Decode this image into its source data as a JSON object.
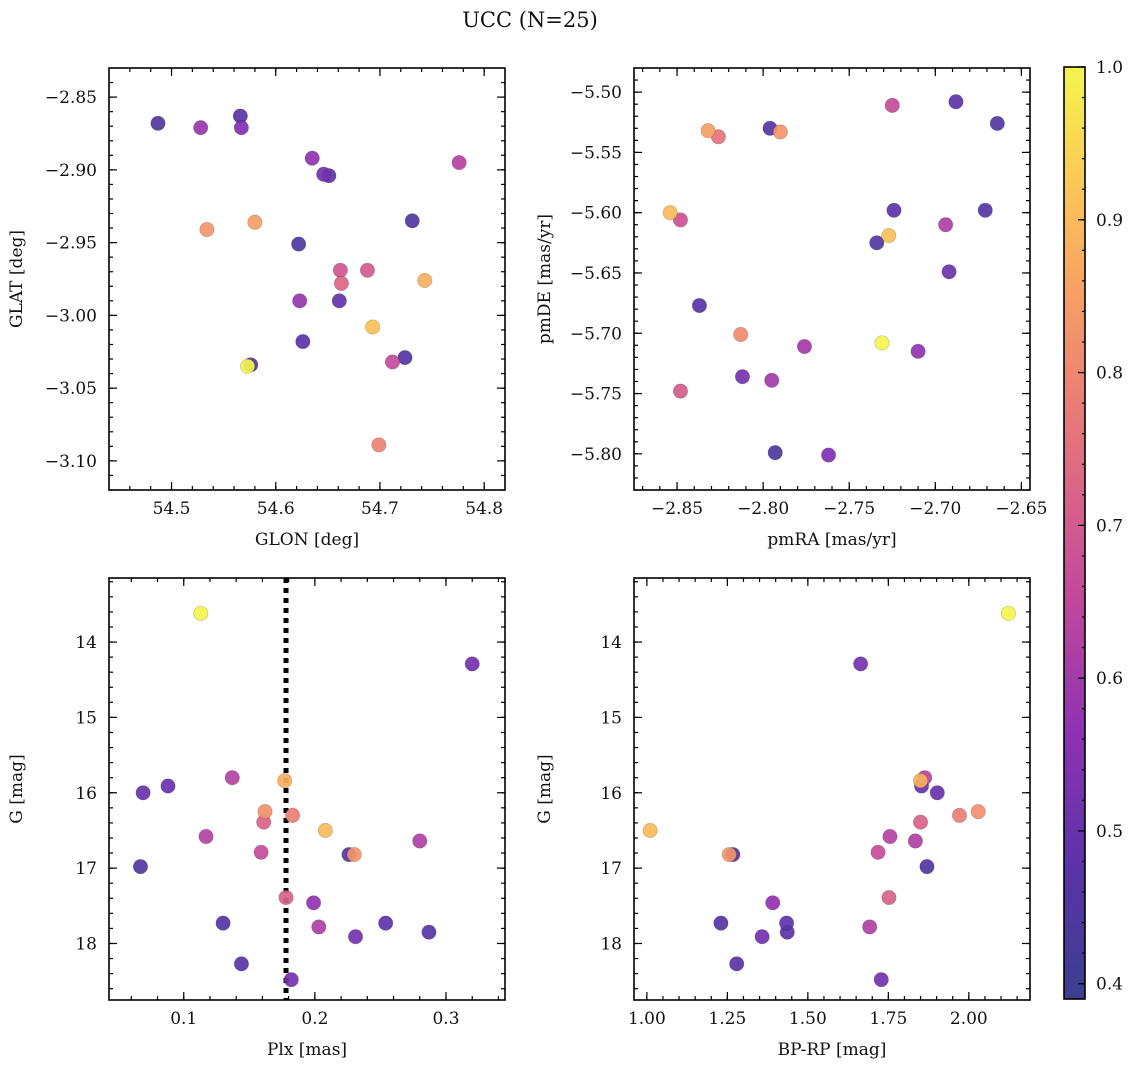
{
  "figure_title": "UCC (N=25)",
  "colorbar": {
    "min": 0.39,
    "max": 1.0,
    "ticks": [
      0.4,
      0.5,
      0.6,
      0.7,
      0.8,
      0.9,
      1.0
    ],
    "tick_labels": [
      "0.4",
      "0.5",
      "0.6",
      "0.7",
      "0.8",
      "0.9",
      "1.0"
    ],
    "colormap": "plasma"
  },
  "chart_data": [
    {
      "type": "scatter",
      "xlabel": "GLON [deg]",
      "ylabel": "GLAT [deg]",
      "xlim": [
        54.44,
        54.82
      ],
      "ylim": [
        -3.12,
        -2.83
      ],
      "y_inverted": false,
      "xticks": [
        54.5,
        54.6,
        54.7,
        54.8
      ],
      "xtick_labels": [
        "54.5",
        "54.6",
        "54.7",
        "54.8"
      ],
      "yticks": [
        -2.85,
        -2.9,
        -2.95,
        -3.0,
        -3.05,
        -3.1
      ],
      "ytick_labels": [
        "−2.85",
        "−2.90",
        "−2.95",
        "−3.00",
        "−3.05",
        "−3.10"
      ],
      "points": [
        {
          "x": 54.487,
          "y": -2.868,
          "c": 0.45
        },
        {
          "x": 54.528,
          "y": -2.871,
          "c": 0.58
        },
        {
          "x": 54.566,
          "y": -2.863,
          "c": 0.47
        },
        {
          "x": 54.567,
          "y": -2.871,
          "c": 0.54
        },
        {
          "x": 54.635,
          "y": -2.892,
          "c": 0.57
        },
        {
          "x": 54.646,
          "y": -2.903,
          "c": 0.52
        },
        {
          "x": 54.651,
          "y": -2.904,
          "c": 0.48
        },
        {
          "x": 54.776,
          "y": -2.895,
          "c": 0.63
        },
        {
          "x": 54.731,
          "y": -2.935,
          "c": 0.45
        },
        {
          "x": 54.534,
          "y": -2.941,
          "c": 0.83
        },
        {
          "x": 54.58,
          "y": -2.936,
          "c": 0.85
        },
        {
          "x": 54.622,
          "y": -2.951,
          "c": 0.44
        },
        {
          "x": 54.662,
          "y": -2.969,
          "c": 0.69
        },
        {
          "x": 54.688,
          "y": -2.969,
          "c": 0.7
        },
        {
          "x": 54.663,
          "y": -2.978,
          "c": 0.73
        },
        {
          "x": 54.743,
          "y": -2.976,
          "c": 0.88
        },
        {
          "x": 54.623,
          "y": -2.99,
          "c": 0.58
        },
        {
          "x": 54.661,
          "y": -2.99,
          "c": 0.49
        },
        {
          "x": 54.693,
          "y": -3.008,
          "c": 0.91
        },
        {
          "x": 54.626,
          "y": -3.018,
          "c": 0.48
        },
        {
          "x": 54.724,
          "y": -3.029,
          "c": 0.46
        },
        {
          "x": 54.712,
          "y": -3.032,
          "c": 0.66
        },
        {
          "x": 54.576,
          "y": -3.034,
          "c": 0.46
        },
        {
          "x": 54.573,
          "y": -3.035,
          "c": 1.0
        },
        {
          "x": 54.699,
          "y": -3.089,
          "c": 0.79
        }
      ]
    },
    {
      "type": "scatter",
      "xlabel": "pmRA [mas/yr]",
      "ylabel": "pmDE [mas/yr]",
      "xlim": [
        -2.875,
        -2.645
      ],
      "ylim": [
        -5.83,
        -5.48
      ],
      "y_inverted": false,
      "xticks": [
        -2.85,
        -2.8,
        -2.75,
        -2.7,
        -2.65
      ],
      "xtick_labels": [
        "−2.85",
        "−2.80",
        "−2.75",
        "−2.70",
        "−2.65"
      ],
      "yticks": [
        -5.5,
        -5.55,
        -5.6,
        -5.65,
        -5.7,
        -5.75,
        -5.8
      ],
      "ytick_labels": [
        "−5.50",
        "−5.55",
        "−5.60",
        "−5.65",
        "−5.70",
        "−5.75",
        "−5.80"
      ],
      "points": [
        {
          "x": -2.725,
          "y": -5.511,
          "c": 0.66
        },
        {
          "x": -2.688,
          "y": -5.508,
          "c": 0.48
        },
        {
          "x": -2.664,
          "y": -5.526,
          "c": 0.46
        },
        {
          "x": -2.832,
          "y": -5.532,
          "c": 0.85
        },
        {
          "x": -2.826,
          "y": -5.537,
          "c": 0.76
        },
        {
          "x": -2.796,
          "y": -5.53,
          "c": 0.46
        },
        {
          "x": -2.79,
          "y": -5.533,
          "c": 0.83
        },
        {
          "x": -2.854,
          "y": -5.6,
          "c": 0.9
        },
        {
          "x": -2.848,
          "y": -5.606,
          "c": 0.68
        },
        {
          "x": -2.724,
          "y": -5.598,
          "c": 0.48
        },
        {
          "x": -2.671,
          "y": -5.598,
          "c": 0.46
        },
        {
          "x": -2.734,
          "y": -5.625,
          "c": 0.45
        },
        {
          "x": -2.727,
          "y": -5.619,
          "c": 0.91
        },
        {
          "x": -2.694,
          "y": -5.61,
          "c": 0.62
        },
        {
          "x": -2.692,
          "y": -5.649,
          "c": 0.51
        },
        {
          "x": -2.837,
          "y": -5.677,
          "c": 0.47
        },
        {
          "x": -2.813,
          "y": -5.701,
          "c": 0.81
        },
        {
          "x": -2.776,
          "y": -5.711,
          "c": 0.6
        },
        {
          "x": -2.731,
          "y": -5.708,
          "c": 1.0
        },
        {
          "x": -2.71,
          "y": -5.715,
          "c": 0.57
        },
        {
          "x": -2.812,
          "y": -5.736,
          "c": 0.52
        },
        {
          "x": -2.795,
          "y": -5.739,
          "c": 0.6
        },
        {
          "x": -2.848,
          "y": -5.748,
          "c": 0.7
        },
        {
          "x": -2.793,
          "y": -5.799,
          "c": 0.44
        },
        {
          "x": -2.762,
          "y": -5.801,
          "c": 0.54
        }
      ]
    },
    {
      "type": "scatter",
      "xlabel": "Plx [mas]",
      "ylabel": "G [mag]",
      "xlim": [
        0.043,
        0.345
      ],
      "ylim": [
        13.15,
        18.75
      ],
      "y_inverted": true,
      "xticks": [
        0.1,
        0.2,
        0.3
      ],
      "xtick_labels": [
        "0.1",
        "0.2",
        "0.3"
      ],
      "yticks": [
        14,
        15,
        16,
        17,
        18
      ],
      "ytick_labels": [
        "14",
        "15",
        "16",
        "17",
        "18"
      ],
      "vline": {
        "x": 0.178,
        "style": "dotted"
      },
      "points": [
        {
          "x": 0.113,
          "y": 13.62,
          "c": 1.0
        },
        {
          "x": 0.32,
          "y": 14.29,
          "c": 0.52
        },
        {
          "x": 0.137,
          "y": 15.8,
          "c": 0.63
        },
        {
          "x": 0.088,
          "y": 15.91,
          "c": 0.5
        },
        {
          "x": 0.069,
          "y": 16.0,
          "c": 0.5
        },
        {
          "x": 0.177,
          "y": 15.84,
          "c": 0.88
        },
        {
          "x": 0.162,
          "y": 16.25,
          "c": 0.82
        },
        {
          "x": 0.183,
          "y": 16.3,
          "c": 0.78
        },
        {
          "x": 0.161,
          "y": 16.39,
          "c": 0.72
        },
        {
          "x": 0.208,
          "y": 16.5,
          "c": 0.9
        },
        {
          "x": 0.117,
          "y": 16.58,
          "c": 0.63
        },
        {
          "x": 0.28,
          "y": 16.64,
          "c": 0.62
        },
        {
          "x": 0.159,
          "y": 16.79,
          "c": 0.66
        },
        {
          "x": 0.226,
          "y": 16.82,
          "c": 0.46
        },
        {
          "x": 0.23,
          "y": 16.82,
          "c": 0.83
        },
        {
          "x": 0.067,
          "y": 16.98,
          "c": 0.45
        },
        {
          "x": 0.178,
          "y": 17.39,
          "c": 0.72
        },
        {
          "x": 0.199,
          "y": 17.46,
          "c": 0.57
        },
        {
          "x": 0.13,
          "y": 17.73,
          "c": 0.46
        },
        {
          "x": 0.254,
          "y": 17.73,
          "c": 0.48
        },
        {
          "x": 0.203,
          "y": 17.78,
          "c": 0.62
        },
        {
          "x": 0.287,
          "y": 17.85,
          "c": 0.47
        },
        {
          "x": 0.231,
          "y": 17.91,
          "c": 0.52
        },
        {
          "x": 0.144,
          "y": 18.27,
          "c": 0.47
        },
        {
          "x": 0.182,
          "y": 18.48,
          "c": 0.52
        }
      ]
    },
    {
      "type": "scatter",
      "xlabel": "BP-RP [mag]",
      "ylabel": "G [mag]",
      "xlim": [
        0.96,
        2.19
      ],
      "ylim": [
        13.15,
        18.75
      ],
      "y_inverted": true,
      "xticks": [
        1.0,
        1.25,
        1.5,
        1.75,
        2.0
      ],
      "xtick_labels": [
        "1.00",
        "1.25",
        "1.50",
        "1.75",
        "2.00"
      ],
      "yticks": [
        14,
        15,
        16,
        17,
        18
      ],
      "ytick_labels": [
        "14",
        "15",
        "16",
        "17",
        "18"
      ],
      "points": [
        {
          "x": 2.123,
          "y": 13.62,
          "c": 1.0
        },
        {
          "x": 1.664,
          "y": 14.29,
          "c": 0.52
        },
        {
          "x": 1.863,
          "y": 15.8,
          "c": 0.63
        },
        {
          "x": 1.85,
          "y": 15.84,
          "c": 0.88
        },
        {
          "x": 1.853,
          "y": 15.91,
          "c": 0.5
        },
        {
          "x": 1.902,
          "y": 16.0,
          "c": 0.5
        },
        {
          "x": 2.029,
          "y": 16.25,
          "c": 0.82
        },
        {
          "x": 1.971,
          "y": 16.3,
          "c": 0.78
        },
        {
          "x": 1.85,
          "y": 16.39,
          "c": 0.72
        },
        {
          "x": 1.01,
          "y": 16.5,
          "c": 0.9
        },
        {
          "x": 1.755,
          "y": 16.58,
          "c": 0.63
        },
        {
          "x": 1.834,
          "y": 16.64,
          "c": 0.62
        },
        {
          "x": 1.718,
          "y": 16.79,
          "c": 0.66
        },
        {
          "x": 1.267,
          "y": 16.82,
          "c": 0.46
        },
        {
          "x": 1.256,
          "y": 16.82,
          "c": 0.83
        },
        {
          "x": 1.87,
          "y": 16.98,
          "c": 0.45
        },
        {
          "x": 1.752,
          "y": 17.39,
          "c": 0.72
        },
        {
          "x": 1.391,
          "y": 17.46,
          "c": 0.57
        },
        {
          "x": 1.23,
          "y": 17.73,
          "c": 0.46
        },
        {
          "x": 1.434,
          "y": 17.73,
          "c": 0.48
        },
        {
          "x": 1.692,
          "y": 17.78,
          "c": 0.62
        },
        {
          "x": 1.436,
          "y": 17.85,
          "c": 0.47
        },
        {
          "x": 1.358,
          "y": 17.91,
          "c": 0.52
        },
        {
          "x": 1.279,
          "y": 18.27,
          "c": 0.47
        },
        {
          "x": 1.728,
          "y": 18.48,
          "c": 0.52
        }
      ]
    }
  ]
}
